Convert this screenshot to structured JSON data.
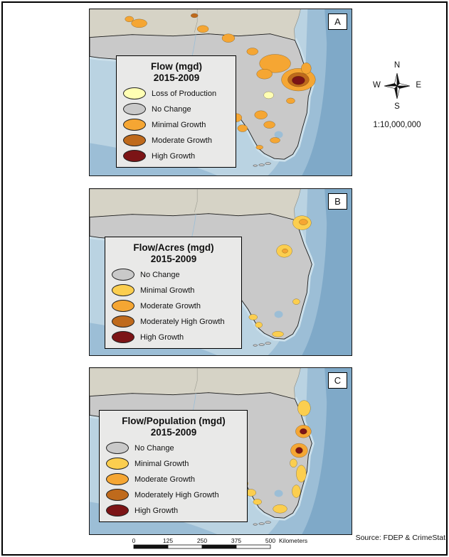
{
  "page": {
    "source": "Source:  FDEP & CrimeStat",
    "scale_ratio": "1:10,000,000"
  },
  "compass": {
    "north": "N",
    "south": "S",
    "east": "E",
    "west": "W"
  },
  "scalebar": {
    "labels": [
      "0",
      "125",
      "250",
      "375",
      "500"
    ],
    "unit": "Kilometers"
  },
  "colors": {
    "oceanLight": "#BAD3E2",
    "oceanMid": "#9CBED6",
    "oceanDeep": "#7FA9C8",
    "landFl": "#C9C9C9",
    "landOther": "#D6D3C6",
    "lightYellow": "#FFFFB3",
    "yellow": "#FBCE4F",
    "orange": "#F5A633",
    "darkOrange": "#BF6A1C",
    "maroon": "#7C1416"
  },
  "panels": [
    {
      "label": "A",
      "title_line1": "Flow (mgd)",
      "title_line2": "2015-2009",
      "legend": [
        {
          "label": "Loss of Production",
          "color": "#FFFFB3"
        },
        {
          "label": "No Change",
          "color": "#C9C9C9"
        },
        {
          "label": "Minimal Growth",
          "color": "#F5A633"
        },
        {
          "label": "Moderate Growth",
          "color": "#BF6A1C"
        },
        {
          "label": "High Growth",
          "color": "#7C1416"
        }
      ],
      "blobs": [
        [
          70,
          20,
          11,
          6,
          "orange"
        ],
        [
          56,
          14,
          6,
          4,
          "orange"
        ],
        [
          160,
          28,
          8,
          5,
          "orange"
        ],
        [
          196,
          41,
          9,
          6,
          "orange"
        ],
        [
          148,
          9,
          5,
          3,
          "darkOrange"
        ],
        [
          230,
          60,
          8,
          5,
          "orange"
        ],
        [
          262,
          77,
          22,
          13,
          "orange"
        ],
        [
          247,
          92,
          11,
          7,
          "orange"
        ],
        [
          295,
          100,
          24,
          16,
          "orange"
        ],
        [
          295,
          100,
          15,
          10,
          "darkOrange"
        ],
        [
          295,
          101,
          9,
          6,
          "maroon"
        ],
        [
          306,
          84,
          7,
          8,
          "orange"
        ],
        [
          253,
          122,
          7,
          5,
          "lightYellow"
        ],
        [
          197,
          138,
          9,
          6,
          "orange"
        ],
        [
          207,
          154,
          8,
          6,
          "orange"
        ],
        [
          216,
          169,
          7,
          5,
          "orange"
        ],
        [
          193,
          126,
          5,
          4,
          "orange"
        ],
        [
          242,
          150,
          9,
          6,
          "orange"
        ],
        [
          254,
          164,
          8,
          5,
          "orange"
        ],
        [
          262,
          186,
          7,
          4,
          "orange"
        ],
        [
          240,
          196,
          5,
          3,
          "orange"
        ],
        [
          284,
          130,
          6,
          4,
          "orange"
        ]
      ]
    },
    {
      "label": "B",
      "title_line1": "Flow/Acres (mgd)",
      "title_line2": "2015-2009",
      "legend": [
        {
          "label": "No Change",
          "color": "#C9C9C9"
        },
        {
          "label": "Minimal Growth",
          "color": "#FBCE4F"
        },
        {
          "label": "Moderate Growth",
          "color": "#F5A633"
        },
        {
          "label": "Moderately High Growth",
          "color": "#BF6A1C"
        },
        {
          "label": "High Growth",
          "color": "#7C1416"
        }
      ],
      "blobs": [
        [
          300,
          48,
          13,
          10,
          "yellow"
        ],
        [
          302,
          47,
          6,
          4,
          "orange"
        ],
        [
          275,
          88,
          11,
          9,
          "yellow"
        ],
        [
          276,
          88,
          4,
          3,
          "orange"
        ],
        [
          186,
          120,
          4,
          3,
          "yellow"
        ],
        [
          197,
          124,
          8,
          7,
          "yellow"
        ],
        [
          197,
          124,
          4,
          3.5,
          "maroon"
        ],
        [
          231,
          182,
          6,
          4,
          "yellow"
        ],
        [
          239,
          193,
          5,
          4,
          "yellow"
        ],
        [
          266,
          206,
          8,
          4,
          "yellow"
        ],
        [
          292,
          160,
          5,
          4,
          "yellow"
        ]
      ]
    },
    {
      "label": "C",
      "title_line1": "Flow/Population (mgd)",
      "title_line2": "2015-2009",
      "legend": [
        {
          "label": "No Change",
          "color": "#C9C9C9"
        },
        {
          "label": "Minimal Growth",
          "color": "#FBCE4F"
        },
        {
          "label": "Moderate Growth",
          "color": "#F5A633"
        },
        {
          "label": "Moderately High Growth",
          "color": "#BF6A1C"
        },
        {
          "label": "High Growth",
          "color": "#7C1416"
        }
      ],
      "blobs": [
        [
          303,
          57,
          9,
          11,
          "yellow"
        ],
        [
          302,
          90,
          11,
          9,
          "orange"
        ],
        [
          302,
          90,
          5,
          4,
          "maroon"
        ],
        [
          296,
          117,
          12,
          10,
          "orange"
        ],
        [
          296,
          117,
          5,
          4.5,
          "maroon"
        ],
        [
          299,
          150,
          7,
          12,
          "yellow"
        ],
        [
          292,
          175,
          6,
          9,
          "yellow"
        ],
        [
          288,
          135,
          5,
          6,
          "yellow"
        ],
        [
          228,
          177,
          7,
          5,
          "yellow"
        ],
        [
          237,
          190,
          6,
          4,
          "yellow"
        ],
        [
          219,
          164,
          5,
          4,
          "yellow"
        ],
        [
          269,
          200,
          10,
          6,
          "yellow"
        ],
        [
          196,
          136,
          5,
          4,
          "yellow"
        ]
      ]
    }
  ]
}
